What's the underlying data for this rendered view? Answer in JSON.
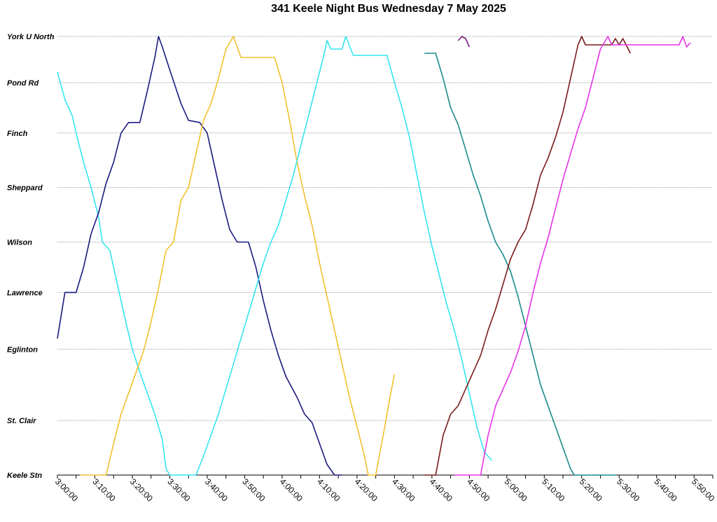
{
  "chart_data": {
    "type": "line",
    "title": "341 Keele Night Bus Wednesday 7 May 2025",
    "xlabel": "",
    "ylabel": "",
    "x_range": [
      "3:00:00",
      "5:55:00"
    ],
    "x_ticks": [
      "3:00:00",
      "3:10:00",
      "3:20:00",
      "3:30:00",
      "3:40:00",
      "3:50:00",
      "4:00:00",
      "4:10:00",
      "4:20:00",
      "4:30:00",
      "4:40:00",
      "4:50:00",
      "5:00:00",
      "5:10:00",
      "5:20:00",
      "5:30:00",
      "5:40:00",
      "5:50:00"
    ],
    "stops": [
      {
        "name": "York U North",
        "pos": 0
      },
      {
        "name": "Pond Rd",
        "pos": 1.1
      },
      {
        "name": "Finch",
        "pos": 2.3
      },
      {
        "name": "Sheppard",
        "pos": 3.6
      },
      {
        "name": "Wilson",
        "pos": 4.9
      },
      {
        "name": "Lawrence",
        "pos": 6.1
      },
      {
        "name": "Eglinton",
        "pos": 7.45
      },
      {
        "name": "St. Clair",
        "pos": 9.15
      },
      {
        "name": "Keele Stn",
        "pos": 10.45
      }
    ],
    "grid": true,
    "legend": "none",
    "series": [
      {
        "color": "#33e6f0",
        "points": [
          [
            "3:00:00",
            0.85
          ],
          [
            "3:02:00",
            1.5
          ],
          [
            "3:04:00",
            1.9
          ],
          [
            "3:05:00",
            2.3
          ],
          [
            "3:07:00",
            3.0
          ],
          [
            "3:09:00",
            3.6
          ],
          [
            "3:11:00",
            4.3
          ],
          [
            "3:12:00",
            4.9
          ],
          [
            "3:14:00",
            5.1
          ],
          [
            "3:16:00",
            5.9
          ],
          [
            "3:18:00",
            6.7
          ],
          [
            "3:20:00",
            7.45
          ],
          [
            "3:22:00",
            8.0
          ],
          [
            "3:24:00",
            8.5
          ],
          [
            "3:26:00",
            9.0
          ],
          [
            "3:28:00",
            9.6
          ],
          [
            "3:29:00",
            10.3
          ],
          [
            "3:30:00",
            10.45
          ],
          [
            "3:37:00",
            10.45
          ]
        ]
      },
      {
        "color": "#1a1a80",
        "points": [
          [
            "3:00:00",
            7.2
          ],
          [
            "3:02:00",
            6.1
          ],
          [
            "3:05:00",
            6.1
          ],
          [
            "3:07:00",
            5.5
          ],
          [
            "3:09:00",
            4.7
          ],
          [
            "3:11:00",
            4.2
          ],
          [
            "3:13:00",
            3.5
          ],
          [
            "3:15:00",
            3.0
          ],
          [
            "3:17:00",
            2.3
          ],
          [
            "3:19:00",
            2.05
          ],
          [
            "3:22:00",
            2.05
          ],
          [
            "3:24:00",
            1.3
          ],
          [
            "3:26:00",
            0.5
          ],
          [
            "3:27:00",
            0
          ],
          [
            "3:28:00",
            0.25
          ],
          [
            "3:30:00",
            0.8
          ],
          [
            "3:33:00",
            1.6
          ],
          [
            "3:35:00",
            2.0
          ],
          [
            "3:38:00",
            2.05
          ],
          [
            "3:40:00",
            2.3
          ],
          [
            "3:42:00",
            3.1
          ],
          [
            "3:44:00",
            3.9
          ],
          [
            "3:46:00",
            4.6
          ],
          [
            "3:48:00",
            4.9
          ],
          [
            "3:51:00",
            4.9
          ],
          [
            "3:53:00",
            5.5
          ],
          [
            "3:55:00",
            6.3
          ],
          [
            "3:57:00",
            7.0
          ],
          [
            "3:59:00",
            7.6
          ],
          [
            "4:01:00",
            8.1
          ],
          [
            "4:04:00",
            8.6
          ],
          [
            "4:06:00",
            9.0
          ],
          [
            "4:08:00",
            9.2
          ],
          [
            "4:10:00",
            9.7
          ],
          [
            "4:12:00",
            10.2
          ],
          [
            "4:14:00",
            10.45
          ],
          [
            "4:16:00",
            10.45
          ]
        ]
      },
      {
        "color": "#f2c12e",
        "points": [
          [
            "3:06:00",
            10.45
          ],
          [
            "3:13:00",
            10.45
          ],
          [
            "3:15:00",
            9.7
          ],
          [
            "3:17:00",
            9.0
          ],
          [
            "3:19:00",
            8.5
          ],
          [
            "3:21:00",
            8.0
          ],
          [
            "3:23:00",
            7.5
          ],
          [
            "3:25:00",
            6.8
          ],
          [
            "3:27:00",
            6.0
          ],
          [
            "3:29:00",
            5.1
          ],
          [
            "3:31:00",
            4.9
          ],
          [
            "3:33:00",
            3.9
          ],
          [
            "3:35:00",
            3.6
          ],
          [
            "3:37:00",
            2.8
          ],
          [
            "3:39:00",
            2.0
          ],
          [
            "3:41:00",
            1.6
          ],
          [
            "3:43:00",
            1.0
          ],
          [
            "3:45:00",
            0.3
          ],
          [
            "3:47:00",
            0
          ],
          [
            "3:49:00",
            0.5
          ],
          [
            "3:58:00",
            0.5
          ],
          [
            "4:00:00",
            1.1
          ],
          [
            "4:02:00",
            2.0
          ],
          [
            "4:04:00",
            3.0
          ],
          [
            "4:06:00",
            3.8
          ],
          [
            "4:08:00",
            4.5
          ],
          [
            "4:10:00",
            5.4
          ],
          [
            "4:12:00",
            6.2
          ],
          [
            "4:14:00",
            7.0
          ],
          [
            "4:16:00",
            7.8
          ],
          [
            "4:18:00",
            8.6
          ],
          [
            "4:20:00",
            9.3
          ],
          [
            "4:22:00",
            10.0
          ],
          [
            "4:23:00",
            10.45
          ],
          [
            "4:25:00",
            10.45
          ],
          [
            "4:27:00",
            9.5
          ],
          [
            "4:29:00",
            8.5
          ],
          [
            "4:30:00",
            8.05
          ]
        ]
      },
      {
        "color": "#33e6f0",
        "points": [
          [
            "3:37:00",
            10.45
          ],
          [
            "3:39:00",
            10.0
          ],
          [
            "3:41:00",
            9.5
          ],
          [
            "3:43:00",
            9.0
          ],
          [
            "3:45:00",
            8.4
          ],
          [
            "3:47:00",
            7.8
          ],
          [
            "3:49:00",
            7.2
          ],
          [
            "3:51:00",
            6.6
          ],
          [
            "3:53:00",
            6.0
          ],
          [
            "3:55:00",
            5.4
          ],
          [
            "3:57:00",
            4.9
          ],
          [
            "3:59:00",
            4.5
          ],
          [
            "4:01:00",
            3.9
          ],
          [
            "4:03:00",
            3.3
          ],
          [
            "4:05:00",
            2.6
          ],
          [
            "4:07:00",
            1.9
          ],
          [
            "4:09:00",
            1.2
          ],
          [
            "4:11:00",
            0.5
          ],
          [
            "4:12:00",
            0.1
          ],
          [
            "4:13:00",
            0.3
          ],
          [
            "4:16:00",
            0.3
          ],
          [
            "4:17:00",
            0
          ],
          [
            "4:19:00",
            0.45
          ],
          [
            "4:28:00",
            0.45
          ],
          [
            "4:30:00",
            1.1
          ],
          [
            "4:32:00",
            1.7
          ],
          [
            "4:34:00",
            2.4
          ],
          [
            "4:36:00",
            3.3
          ],
          [
            "4:38:00",
            4.2
          ],
          [
            "4:40:00",
            5.0
          ],
          [
            "4:42:00",
            5.7
          ],
          [
            "4:44:00",
            6.4
          ],
          [
            "4:46:00",
            7.0
          ],
          [
            "4:48:00",
            7.7
          ],
          [
            "4:50:00",
            8.5
          ],
          [
            "4:52:00",
            9.3
          ],
          [
            "4:54:00",
            9.9
          ],
          [
            "4:56:00",
            10.1
          ]
        ]
      },
      {
        "color": "#1a8a8a",
        "points": [
          [
            "4:38:00",
            0.4
          ],
          [
            "4:41:00",
            0.4
          ],
          [
            "4:43:00",
            1.0
          ],
          [
            "4:45:00",
            1.7
          ],
          [
            "4:47:00",
            2.1
          ],
          [
            "4:49:00",
            2.7
          ],
          [
            "4:51:00",
            3.3
          ],
          [
            "4:53:00",
            3.8
          ],
          [
            "4:55:00",
            4.4
          ],
          [
            "4:57:00",
            4.9
          ],
          [
            "4:59:00",
            5.2
          ],
          [
            "5:01:00",
            5.6
          ],
          [
            "5:03:00",
            6.2
          ],
          [
            "5:05:00",
            6.9
          ],
          [
            "5:07:00",
            7.6
          ],
          [
            "5:09:00",
            8.3
          ],
          [
            "5:11:00",
            8.8
          ],
          [
            "5:13:00",
            9.3
          ],
          [
            "5:15:00",
            9.8
          ],
          [
            "5:17:00",
            10.3
          ],
          [
            "5:18:00",
            10.45
          ],
          [
            "5:29:00",
            10.45
          ]
        ]
      },
      {
        "color": "#7a1a1a",
        "points": [
          [
            "4:38:00",
            10.45
          ],
          [
            "4:41:00",
            10.45
          ],
          [
            "4:43:00",
            9.5
          ],
          [
            "4:45:00",
            9.0
          ],
          [
            "4:47:00",
            8.8
          ],
          [
            "4:49:00",
            8.4
          ],
          [
            "4:51:00",
            8.0
          ],
          [
            "4:53:00",
            7.6
          ],
          [
            "4:55:00",
            7.0
          ],
          [
            "4:57:00",
            6.5
          ],
          [
            "4:59:00",
            5.9
          ],
          [
            "5:01:00",
            5.3
          ],
          [
            "5:03:00",
            4.9
          ],
          [
            "5:05:00",
            4.6
          ],
          [
            "5:07:00",
            4.0
          ],
          [
            "5:09:00",
            3.3
          ],
          [
            "5:11:00",
            2.9
          ],
          [
            "5:13:00",
            2.4
          ],
          [
            "5:15:00",
            1.8
          ],
          [
            "5:17:00",
            1.0
          ],
          [
            "5:19:00",
            0.2
          ],
          [
            "5:20:00",
            0
          ],
          [
            "5:21:00",
            0.2
          ],
          [
            "5:28:00",
            0.2
          ],
          [
            "5:29:00",
            0.05
          ],
          [
            "5:30:00",
            0.2
          ],
          [
            "5:31:00",
            0.05
          ],
          [
            "5:33:00",
            0.4
          ]
        ]
      },
      {
        "color": "#e633e6",
        "points": [
          [
            "4:46:00",
            10.45
          ],
          [
            "4:53:00",
            10.45
          ],
          [
            "4:55:00",
            9.5
          ],
          [
            "4:57:00",
            8.8
          ],
          [
            "4:59:00",
            8.4
          ],
          [
            "5:01:00",
            8.0
          ],
          [
            "5:03:00",
            7.5
          ],
          [
            "5:05:00",
            6.9
          ],
          [
            "5:07:00",
            6.1
          ],
          [
            "5:09:00",
            5.4
          ],
          [
            "5:11:00",
            4.8
          ],
          [
            "5:13:00",
            4.1
          ],
          [
            "5:15:00",
            3.4
          ],
          [
            "5:17:00",
            2.8
          ],
          [
            "5:19:00",
            2.2
          ],
          [
            "5:21:00",
            1.7
          ],
          [
            "5:23:00",
            1.0
          ],
          [
            "5:25:00",
            0.3
          ],
          [
            "5:27:00",
            0
          ],
          [
            "5:28:00",
            0.2
          ],
          [
            "5:46:00",
            0.2
          ],
          [
            "5:47:00",
            0
          ],
          [
            "5:48:00",
            0.25
          ],
          [
            "5:49:00",
            0.15
          ]
        ]
      },
      {
        "color": "#7a1a80",
        "points": [
          [
            "4:47:00",
            0.1
          ],
          [
            "4:48:00",
            0
          ],
          [
            "4:49:00",
            0.05
          ],
          [
            "4:50:00",
            0.25
          ]
        ]
      }
    ]
  }
}
